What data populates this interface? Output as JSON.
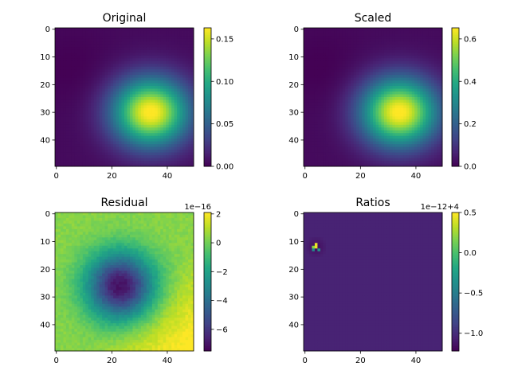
{
  "chart_data": [
    {
      "type": "heatmap",
      "title": "Original",
      "colormap": "viridis",
      "grid_size": [
        50,
        50
      ],
      "x_ticks": [
        0,
        20,
        40
      ],
      "y_ticks": [
        0,
        10,
        20,
        30,
        40
      ],
      "colorbar": {
        "range": [
          0,
          0.163
        ],
        "ticks": [
          "0.00",
          "0.05",
          "0.10",
          "0.15"
        ],
        "tick_values": [
          0,
          0.05,
          0.1,
          0.15
        ],
        "offset_text": ""
      },
      "field": "gaussian",
      "peak": {
        "x": 34,
        "y": 30,
        "value": 0.163
      }
    },
    {
      "type": "heatmap",
      "title": "Scaled",
      "colormap": "viridis",
      "grid_size": [
        50,
        50
      ],
      "x_ticks": [
        0,
        20,
        40
      ],
      "y_ticks": [
        0,
        10,
        20,
        30,
        40
      ],
      "colorbar": {
        "range": [
          0,
          0.652
        ],
        "ticks": [
          "0.0",
          "0.2",
          "0.4",
          "0.6"
        ],
        "tick_values": [
          0,
          0.2,
          0.4,
          0.6
        ],
        "offset_text": ""
      },
      "field": "gaussian",
      "peak": {
        "x": 34,
        "y": 30,
        "value": 0.652
      }
    },
    {
      "type": "heatmap",
      "title": "Residual",
      "colormap": "viridis",
      "grid_size": [
        50,
        50
      ],
      "x_ticks": [
        0,
        20,
        40
      ],
      "y_ticks": [
        0,
        10,
        20,
        30,
        40
      ],
      "colorbar": {
        "range": [
          -7.5,
          2.1
        ],
        "ticks": [
          "−6",
          "−4",
          "−2",
          "0",
          "2"
        ],
        "tick_values": [
          -6,
          -4,
          -2,
          0,
          2
        ],
        "offset_text": "1e−16"
      },
      "field": "residual",
      "minimum": {
        "x": 23,
        "y": 26,
        "value": -7.5
      }
    },
    {
      "type": "heatmap",
      "title": "Ratios",
      "colormap": "viridis",
      "grid_size": [
        50,
        50
      ],
      "x_ticks": [
        0,
        20,
        40
      ],
      "y_ticks": [
        0,
        10,
        20,
        30,
        40
      ],
      "colorbar": {
        "range": [
          -1.22,
          0.5
        ],
        "ticks": [
          "−1.0",
          "−0.5",
          "0.0",
          "0.5"
        ],
        "tick_values": [
          -1.0,
          -0.5,
          0.0,
          0.5
        ],
        "offset_text": "1e−12+4"
      },
      "field": "ratios",
      "background_value": -1.05,
      "hotspot": {
        "x": 4,
        "y": 12
      }
    }
  ]
}
